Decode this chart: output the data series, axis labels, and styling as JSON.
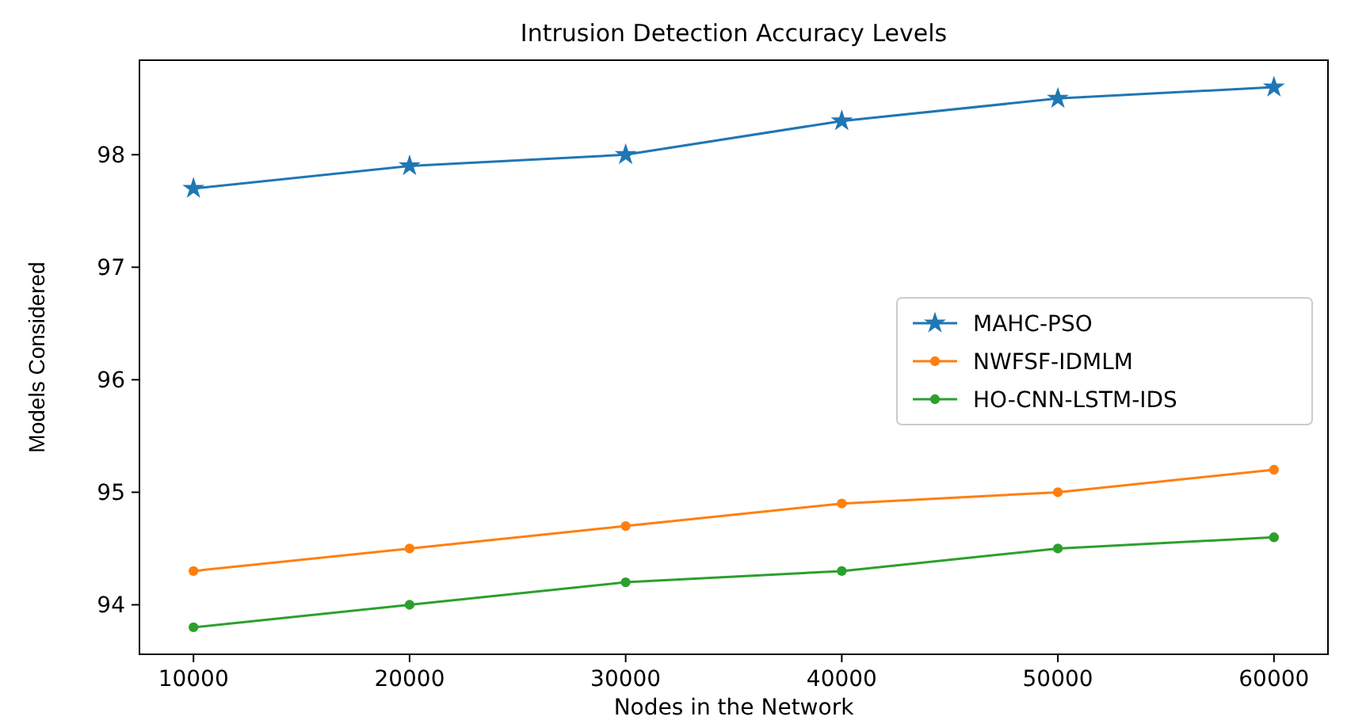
{
  "chart_data": {
    "type": "line",
    "title": "Intrusion Detection Accuracy Levels",
    "xlabel": "Nodes in the Network",
    "ylabel": "Models Considered",
    "x": [
      10000,
      20000,
      30000,
      40000,
      50000,
      60000
    ],
    "xlim": [
      7500,
      62500
    ],
    "xticks": [
      10000,
      20000,
      30000,
      40000,
      50000,
      60000
    ],
    "ylim": [
      93.56,
      98.84
    ],
    "yticks": [
      94,
      95,
      96,
      97,
      98
    ],
    "legend": "right",
    "grid": false,
    "line_style": "solid",
    "series": [
      {
        "name": "MAHC-PSO",
        "color": "#1f77b4",
        "marker": "star",
        "values": [
          97.7,
          97.9,
          98.0,
          98.3,
          98.5,
          98.6
        ]
      },
      {
        "name": "NWFSF-IDMLM",
        "color": "#ff7f0e",
        "marker": "circle",
        "values": [
          94.3,
          94.5,
          94.7,
          94.9,
          95.0,
          95.2
        ]
      },
      {
        "name": "HO-CNN-LSTM-IDS",
        "color": "#2ca02c",
        "marker": "circle",
        "values": [
          93.8,
          94.0,
          94.2,
          94.3,
          94.5,
          94.6
        ]
      }
    ]
  }
}
